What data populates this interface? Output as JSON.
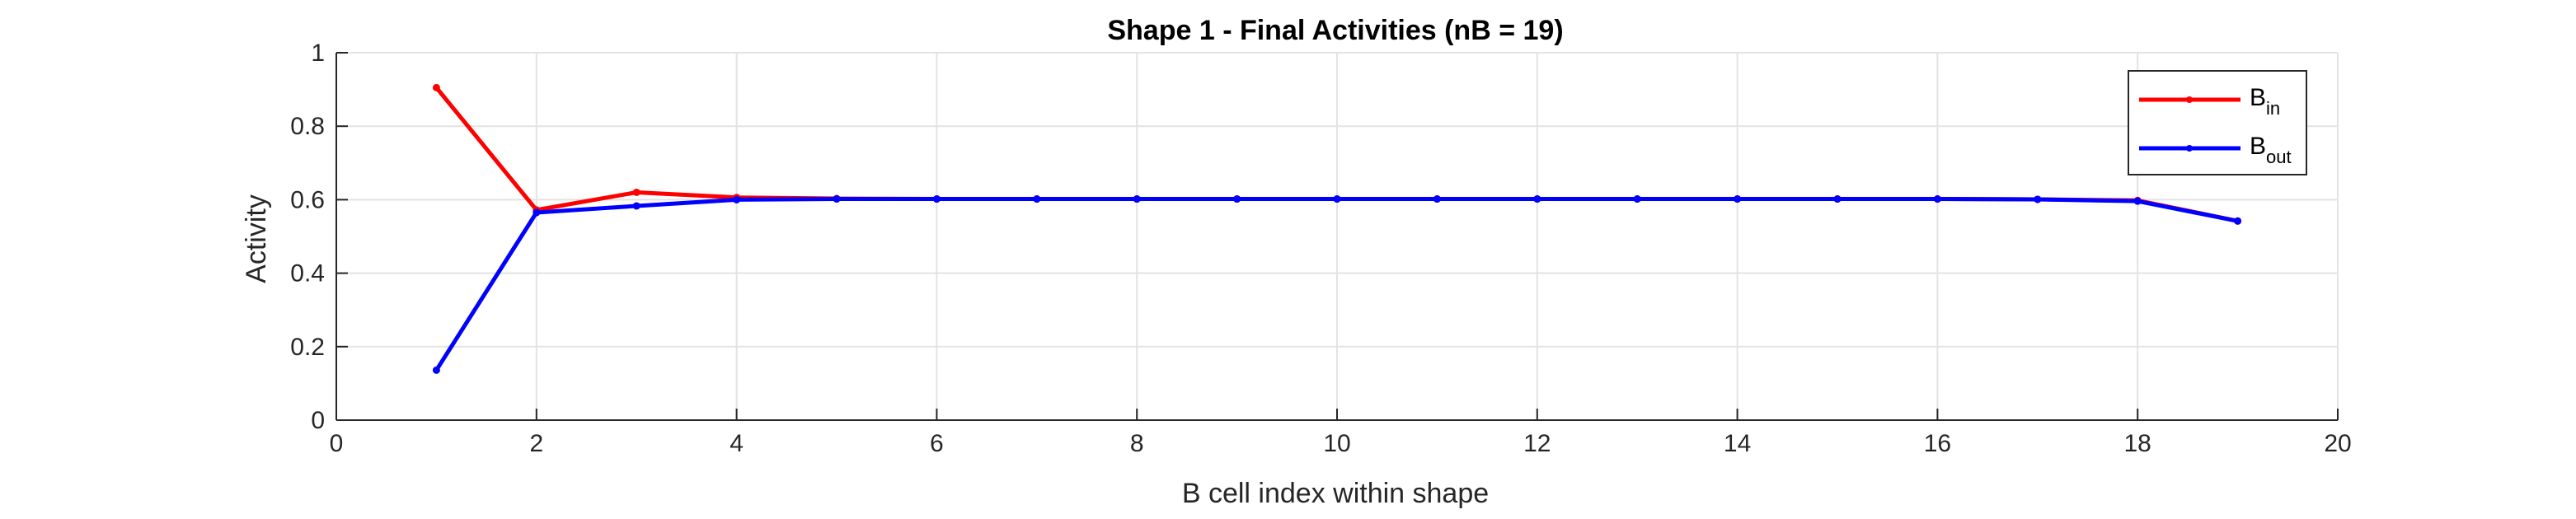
{
  "chart_data": {
    "type": "line",
    "title": "Shape 1 - Final Activities (nB = 19)",
    "xlabel": "B cell index within shape",
    "ylabel": "Activity",
    "xlim": [
      0,
      20
    ],
    "ylim": [
      0,
      1
    ],
    "xticks": [
      0,
      2,
      4,
      6,
      8,
      10,
      12,
      14,
      16,
      18,
      20
    ],
    "yticks": [
      0,
      0.2,
      0.4,
      0.6,
      0.8,
      1
    ],
    "xtick_labels": [
      "0",
      "2",
      "4",
      "6",
      "8",
      "10",
      "12",
      "14",
      "16",
      "18",
      "20"
    ],
    "ytick_labels": [
      "0",
      "0.2",
      "0.4",
      "0.6",
      "0.8",
      "1"
    ],
    "grid": true,
    "legend_position": "top-right",
    "x": [
      1,
      2,
      3,
      4,
      5,
      6,
      7,
      8,
      9,
      10,
      11,
      12,
      13,
      14,
      15,
      16,
      17,
      18,
      19
    ],
    "series": [
      {
        "name": "B",
        "name_subscript": "in",
        "color": "#ff0000",
        "values": [
          0.905,
          0.572,
          0.62,
          0.606,
          0.603,
          0.602,
          0.602,
          0.602,
          0.602,
          0.602,
          0.602,
          0.602,
          0.602,
          0.602,
          0.602,
          0.602,
          0.601,
          0.598,
          0.542
        ]
      },
      {
        "name": "B",
        "name_subscript": "out",
        "color": "#0000ff",
        "values": [
          0.136,
          0.565,
          0.583,
          0.6,
          0.602,
          0.602,
          0.602,
          0.602,
          0.602,
          0.602,
          0.602,
          0.602,
          0.602,
          0.602,
          0.602,
          0.602,
          0.601,
          0.596,
          0.542
        ]
      }
    ]
  }
}
